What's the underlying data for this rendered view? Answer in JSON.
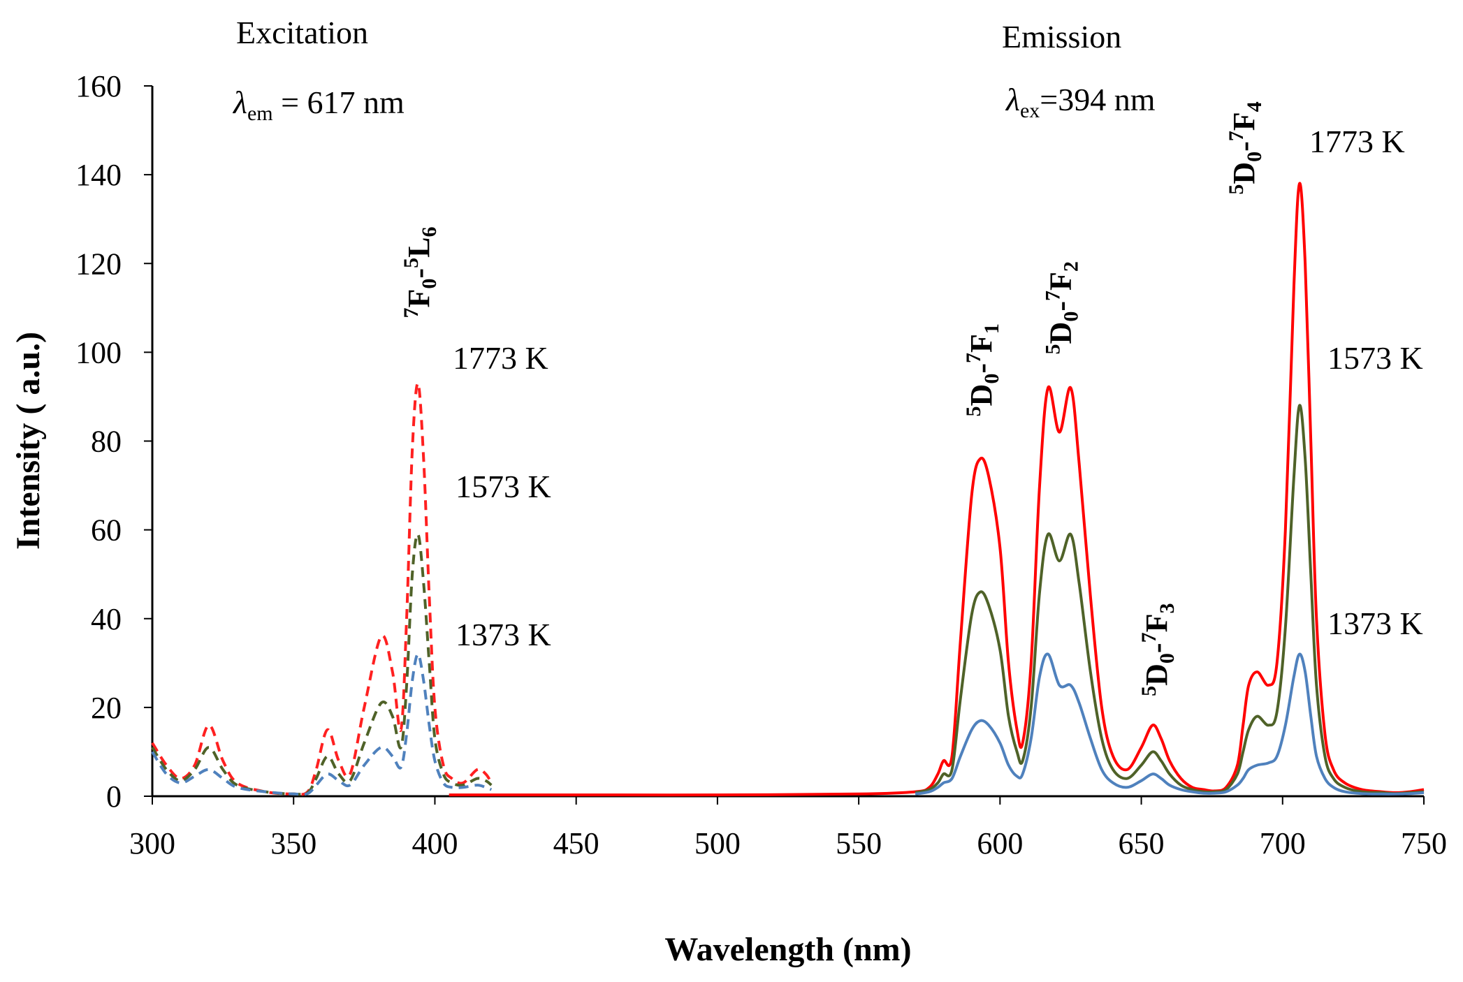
{
  "chart_data": {
    "type": "line",
    "xlabel": "Wavelength (nm)",
    "ylabel": "Intensity ( a.u.)",
    "xlim": [
      300,
      750
    ],
    "ylim": [
      0,
      160
    ],
    "xticks": [
      300,
      350,
      400,
      450,
      500,
      550,
      600,
      650,
      700,
      750
    ],
    "yticks": [
      0,
      20,
      40,
      60,
      80,
      100,
      120,
      140,
      160
    ],
    "grid": false,
    "annotations": {
      "excitation_title": "Excitation",
      "excitation_cond_symbol": "λ",
      "excitation_cond_sub": "em",
      "excitation_cond_value": " = 617 nm",
      "emission_title": "Emission",
      "emission_cond_symbol": "λ",
      "emission_cond_sub": "ex",
      "emission_cond_value": "=394 nm",
      "exc_label_1773": "1773 K",
      "exc_label_1573": "1573 K",
      "exc_label_1373": "1373 K",
      "em_label_1773": "1773 K",
      "em_label_1573": "1573 K",
      "em_label_1373": "1373 K"
    },
    "transitions": [
      {
        "name": "7F0-5L6",
        "sup1": "7",
        "base1": "F",
        "sub1": "0",
        "dash": "-",
        "sup2": "5",
        "base2": "L",
        "sub2": "6",
        "x": 394,
        "y": 118
      },
      {
        "name": "5D0-7F1",
        "sup1": "5",
        "base1": "D",
        "sub1": "0",
        "dash": "-",
        "sup2": "7",
        "base2": "F",
        "sub2": "1",
        "x": 593,
        "y": 96
      },
      {
        "name": "5D0-7F2",
        "sup1": "5",
        "base1": "D",
        "sub1": "0",
        "dash": "-",
        "sup2": "7",
        "base2": "F",
        "sub2": "2",
        "x": 621,
        "y": 110
      },
      {
        "name": "5D0-7F3",
        "sup1": "5",
        "base1": "D",
        "sub1": "0",
        "dash": "-",
        "sup2": "7",
        "base2": "F",
        "sub2": "3",
        "x": 655,
        "y": 33
      },
      {
        "name": "5D0-7F4",
        "sup1": "5",
        "base1": "D",
        "sub1": "0",
        "dash": "-",
        "sup2": "7",
        "base2": "F",
        "sub2": "4",
        "x": 686,
        "y": 146
      }
    ],
    "series": [
      {
        "name": "Excitation 1773 K",
        "style": "dashed",
        "color": "#ff2020",
        "x": [
          300,
          305,
          310,
          315,
          320,
          325,
          330,
          340,
          350,
          355,
          358,
          362,
          366,
          370,
          375,
          381,
          385,
          388,
          390,
          392,
          394,
          396,
          398,
          400,
          403,
          406,
          410,
          415,
          418,
          420
        ],
        "y": [
          12,
          7,
          4,
          7,
          16,
          8,
          3,
          1,
          0.5,
          1,
          6,
          15,
          8,
          5,
          20,
          36,
          28,
          15,
          40,
          78,
          93,
          76,
          45,
          20,
          7,
          4,
          3,
          6,
          5,
          3
        ]
      },
      {
        "name": "Excitation 1573 K",
        "style": "dashed",
        "color": "#4f6228",
        "x": [
          300,
          305,
          310,
          315,
          320,
          325,
          330,
          340,
          350,
          355,
          358,
          362,
          366,
          370,
          375,
          381,
          385,
          388,
          390,
          392,
          394,
          396,
          398,
          400,
          403,
          406,
          410,
          415,
          418,
          420
        ],
        "y": [
          11,
          6,
          3.5,
          6,
          11,
          6,
          2.5,
          1,
          0.5,
          0.8,
          4,
          9,
          5,
          3.5,
          12,
          21,
          18,
          11,
          25,
          50,
          59,
          48,
          30,
          13,
          5,
          3,
          2.5,
          4,
          3.5,
          2.5
        ]
      },
      {
        "name": "Excitation 1373 K",
        "style": "dashed",
        "color": "#4f81bd",
        "x": [
          300,
          305,
          310,
          315,
          320,
          325,
          330,
          340,
          350,
          355,
          358,
          362,
          366,
          370,
          375,
          381,
          385,
          388,
          390,
          392,
          394,
          396,
          398,
          400,
          403,
          406,
          410,
          415,
          418,
          420
        ],
        "y": [
          10,
          5,
          3,
          4.5,
          6,
          4,
          2,
          1,
          0.5,
          0.6,
          2.5,
          5,
          3.5,
          2.5,
          7,
          11,
          9,
          6.5,
          14,
          26,
          32,
          26,
          16,
          8,
          3,
          2,
          2,
          2.5,
          2,
          1.5
        ]
      },
      {
        "name": "Emission 1773 K",
        "style": "solid",
        "color": "#ff0000",
        "x": [
          405,
          450,
          500,
          550,
          570,
          575,
          578,
          580,
          583,
          586,
          590,
          593,
          596,
          600,
          603,
          606,
          608,
          611,
          614,
          617,
          621,
          625,
          628,
          632,
          636,
          640,
          645,
          650,
          654,
          657,
          660,
          664,
          668,
          672,
          676,
          680,
          684,
          686,
          688,
          691,
          695,
          698,
          701,
          704,
          706,
          708,
          710,
          712,
          715,
          718,
          722,
          728,
          735,
          740,
          745,
          750
        ],
        "y": [
          0.3,
          0.3,
          0.3,
          0.5,
          1,
          2,
          5,
          8,
          9,
          35,
          68,
          76,
          72,
          56,
          30,
          15,
          12,
          30,
          70,
          92,
          82,
          92,
          75,
          45,
          20,
          9,
          6,
          11,
          16,
          13,
          8,
          4,
          2,
          1.5,
          1.2,
          2,
          7,
          16,
          25,
          28,
          25,
          30,
          60,
          115,
          138,
          120,
          80,
          40,
          14,
          6,
          3,
          1.5,
          1,
          0.8,
          1,
          1.5
        ]
      },
      {
        "name": "Emission 1573 K",
        "style": "solid",
        "color": "#4f6228",
        "x": [
          570,
          575,
          578,
          580,
          583,
          586,
          590,
          593,
          596,
          600,
          603,
          606,
          608,
          611,
          614,
          617,
          621,
          625,
          628,
          632,
          636,
          640,
          645,
          650,
          654,
          657,
          660,
          664,
          668,
          672,
          676,
          680,
          684,
          686,
          688,
          691,
          695,
          698,
          701,
          704,
          706,
          708,
          710,
          712,
          715,
          718,
          722,
          728,
          735,
          740,
          745,
          750
        ],
        "y": [
          0.8,
          1.5,
          3,
          5,
          6,
          22,
          41,
          46,
          43,
          33,
          18,
          10,
          8,
          20,
          46,
          59,
          53,
          59,
          48,
          28,
          13,
          6,
          4,
          7,
          10,
          8,
          5,
          2.5,
          1.5,
          1,
          1,
          1.5,
          5,
          10,
          15,
          18,
          16,
          19,
          38,
          72,
          88,
          76,
          50,
          25,
          9,
          4,
          2,
          1,
          0.8,
          0.6,
          0.8,
          1
        ]
      },
      {
        "name": "Emission 1373 K",
        "style": "solid",
        "color": "#4f81bd",
        "x": [
          570,
          575,
          578,
          580,
          583,
          586,
          590,
          593,
          596,
          600,
          603,
          606,
          608,
          611,
          614,
          617,
          621,
          625,
          628,
          632,
          636,
          640,
          645,
          650,
          654,
          657,
          660,
          664,
          668,
          672,
          676,
          680,
          684,
          686,
          688,
          691,
          695,
          698,
          701,
          704,
          706,
          708,
          710,
          712,
          715,
          718,
          722,
          728,
          735,
          740,
          745,
          750
        ],
        "y": [
          0.5,
          1,
          2,
          3,
          4,
          9,
          15,
          17,
          16,
          12,
          7,
          4.5,
          5,
          13,
          27,
          32,
          25,
          25,
          21,
          13,
          6,
          3,
          2,
          3.5,
          5,
          4,
          2.5,
          1.5,
          1,
          0.7,
          0.7,
          1,
          2.5,
          4,
          6,
          7,
          7.5,
          9,
          16,
          27,
          32,
          28,
          18,
          9,
          4,
          2,
          1,
          0.6,
          0.5,
          0.5,
          0.6,
          0.8
        ]
      }
    ]
  }
}
